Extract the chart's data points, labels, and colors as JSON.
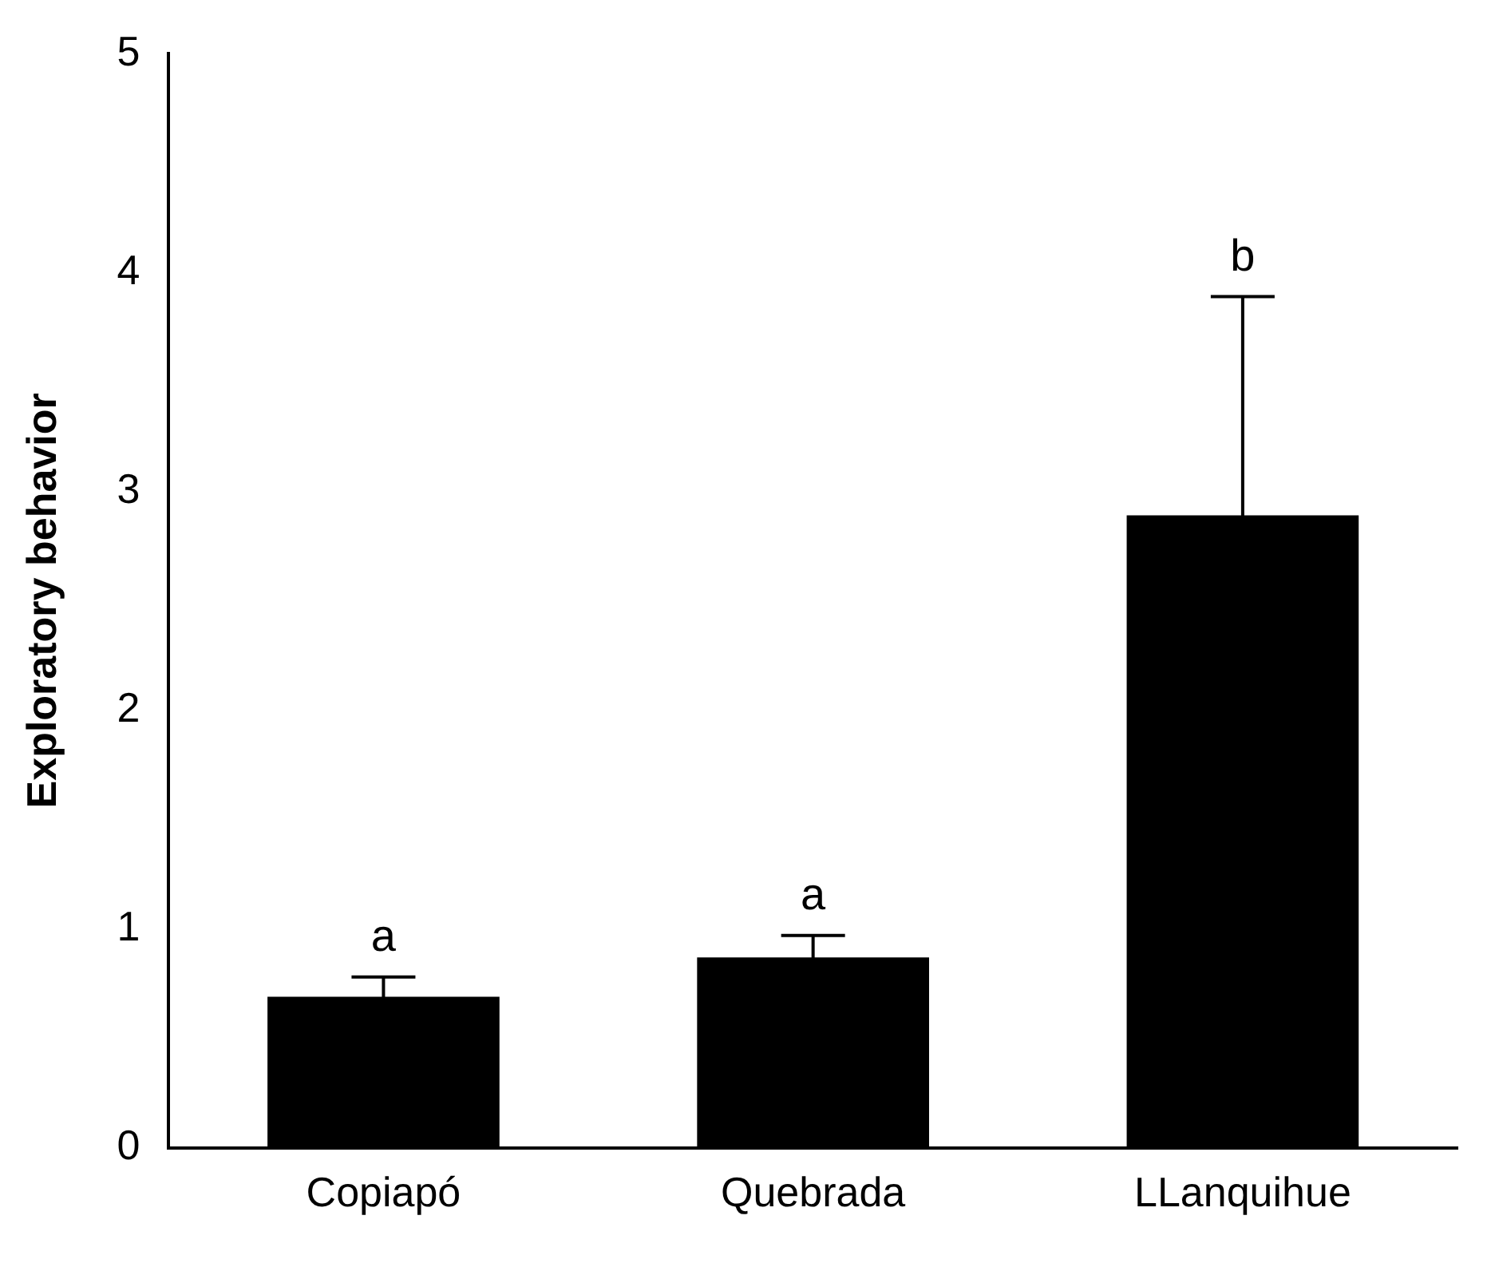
{
  "chart_data": {
    "type": "bar",
    "ylabel": "Exploratory behavior",
    "categories": [
      "Copiapó",
      "Quebrada",
      "LLanquihue"
    ],
    "values": [
      0.69,
      0.87,
      2.89
    ],
    "errors": [
      0.09,
      0.1,
      1.0
    ],
    "color": "#000000",
    "ylim": [
      0,
      5
    ],
    "yticks": [
      0,
      1,
      2,
      3,
      4,
      5
    ],
    "grid": false,
    "legend": false,
    "annotations": [
      "a",
      "a",
      "b"
    ]
  }
}
